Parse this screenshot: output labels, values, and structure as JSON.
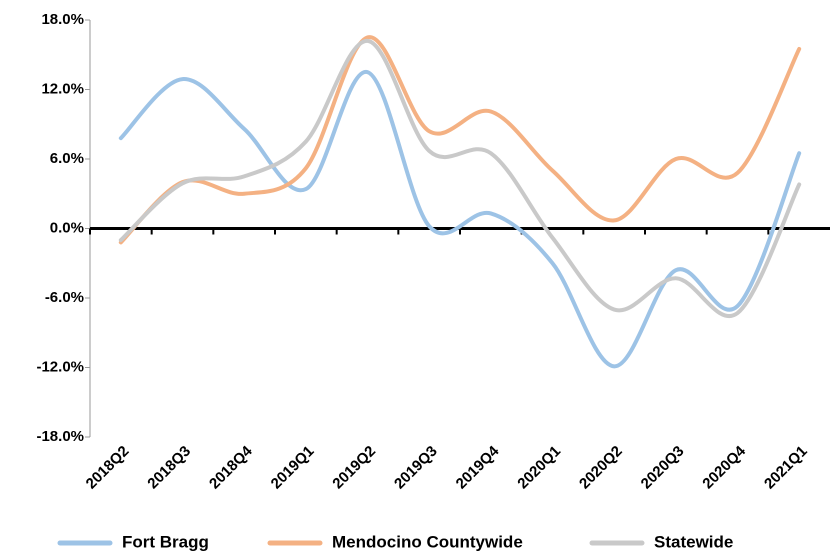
{
  "chart_data": {
    "type": "line",
    "categories": [
      "2018Q2",
      "2018Q3",
      "2018Q4",
      "2019Q1",
      "2019Q2",
      "2019Q3",
      "2019Q4",
      "2020Q1",
      "2020Q2",
      "2020Q3",
      "2020Q4",
      "2021Q1"
    ],
    "series": [
      {
        "name": "Fort Bragg",
        "color": "#9dc3e6",
        "values": [
          7.8,
          12.9,
          8.6,
          3.4,
          13.5,
          0.2,
          1.3,
          -3.0,
          -11.9,
          -3.6,
          -6.7,
          6.5
        ]
      },
      {
        "name": "Mendocino Countywide",
        "color": "#f4b183",
        "values": [
          -1.2,
          4.0,
          3.0,
          5.2,
          16.5,
          8.4,
          10.1,
          5.0,
          0.7,
          6.0,
          4.8,
          15.5
        ]
      },
      {
        "name": "Statewide",
        "color": "#c9c9c9",
        "values": [
          -1.0,
          3.9,
          4.5,
          7.5,
          16.2,
          6.7,
          6.5,
          -0.8,
          -7.0,
          -4.3,
          -7.3,
          3.8
        ]
      }
    ],
    "ylim": [
      -18,
      18
    ],
    "yticks": [
      {
        "value": -18,
        "label": "-18.0%"
      },
      {
        "value": -12,
        "label": "-12.0%"
      },
      {
        "value": -6,
        "label": "-6.0%"
      },
      {
        "value": 0,
        "label": "0.0%"
      },
      {
        "value": 6,
        "label": "6.0%"
      },
      {
        "value": 12,
        "label": "12.0%"
      },
      {
        "value": 18,
        "label": "18.0%"
      }
    ],
    "grid": false,
    "smooth": true,
    "legend": "bottom"
  }
}
